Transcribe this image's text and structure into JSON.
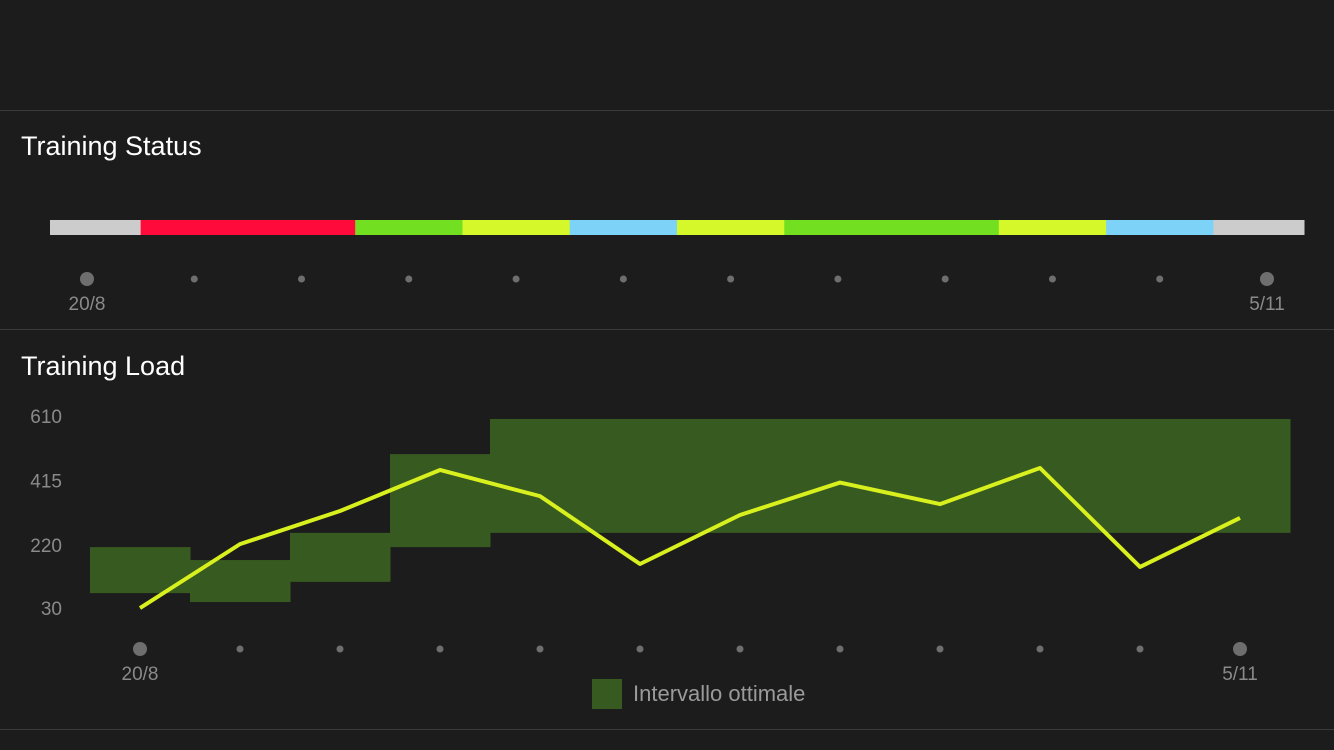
{
  "chart_data": [
    {
      "type": "timeline",
      "title": "Training Status",
      "categories": [
        "20/8",
        null,
        null,
        null,
        null,
        null,
        null,
        null,
        null,
        null,
        null,
        "5/11"
      ],
      "colors": [
        "#cccccc",
        "#ff0a3a",
        "#ff0a3a",
        "#72e020",
        "#d4f82a",
        "#7dd3f7",
        "#d4f82a",
        "#72e020",
        "#72e020",
        "#d4f82a",
        "#7dd3f7",
        "#cccccc"
      ]
    },
    {
      "type": "line",
      "title": "Training Load",
      "categories": [
        "20/8",
        null,
        null,
        null,
        null,
        null,
        null,
        null,
        null,
        null,
        null,
        "5/11"
      ],
      "ylim": [
        30,
        610
      ],
      "yticks": [
        30,
        220,
        415,
        610
      ],
      "series": [
        {
          "color": "#d8f01e",
          "values": [
            36,
            229,
            329,
            453,
            374,
            169,
            317,
            415,
            350,
            459,
            160,
            308
          ]
        }
      ],
      "range": {
        "name": "Intervallo ottimale",
        "color": "#375a20",
        "lower": [
          81,
          54,
          115,
          220,
          263,
          263,
          263,
          263,
          263,
          263,
          263,
          263
        ],
        "upper": [
          220,
          181,
          263,
          501,
          607,
          607,
          607,
          607,
          607,
          607,
          607,
          607
        ]
      }
    }
  ]
}
